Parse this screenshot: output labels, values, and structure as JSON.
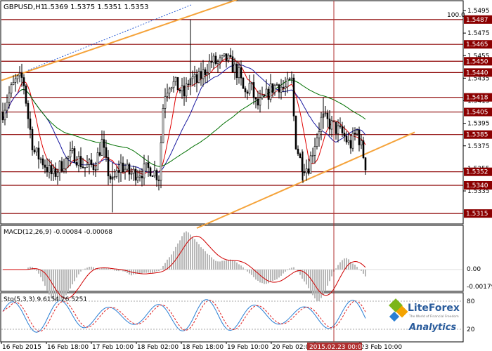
{
  "chart_title": "GBPUSD,H1",
  "ohlc": "1.5369 1.5375 1.5351 1.5353",
  "percent_label": "100.0",
  "price_ticks": [
    "1.5495",
    "1.5475",
    "1.5455",
    "1.5435",
    "1.5415",
    "1.5395",
    "1.5375",
    "1.5355",
    "1.5335"
  ],
  "level_labels": [
    "1.5487",
    "1.5465",
    "1.5450",
    "1.5440",
    "1.5418",
    "1.5405",
    "1.5385",
    "1.5352",
    "1.5340",
    "1.5315"
  ],
  "macd": {
    "label": "MACD(12,26,9) -0.00084 -0.00068",
    "ticks": [
      "0.00",
      "-0.00179"
    ]
  },
  "stoch": {
    "label": "Sto(5,3,3) 9.6154 26.5251",
    "ticks": [
      "80",
      "20"
    ]
  },
  "x_labels": [
    "16 Feb 2015",
    "16 Feb 18:00",
    "17 Feb 10:00",
    "18 Feb 02:00",
    "18 Feb 18:00",
    "19 Feb 10:00",
    "20 Feb 02:00",
    "20 Feb 18:00",
    "23 Feb 10:00"
  ],
  "cursor_time": "2015.02.23 00:00",
  "logo": {
    "brand": "LiteForex",
    "tagline": "The World of Financial Freedom",
    "sub": "Analytics"
  },
  "chart_data": {
    "type": "candlestick",
    "symbol": "GBPUSD",
    "timeframe": "H1",
    "ylim": [
      1.5305,
      1.55
    ],
    "horizontal_levels": [
      1.5487,
      1.5465,
      1.545,
      1.544,
      1.5418,
      1.5405,
      1.5385,
      1.5352,
      1.534,
      1.5315
    ],
    "last_price": 1.5353
  },
  "colors": {
    "level": "#8b0000",
    "trend": "#f5a33a",
    "ma_fast": "#e00000",
    "ma_mid": "#1a1aa0",
    "ma_slow": "#007000",
    "macd_hist": "#b8b8b8",
    "macd_signal": "#d00000",
    "stoch_main": "#2a7fd4",
    "stoch_signal": "#e02020",
    "cursor": "#b03030"
  }
}
